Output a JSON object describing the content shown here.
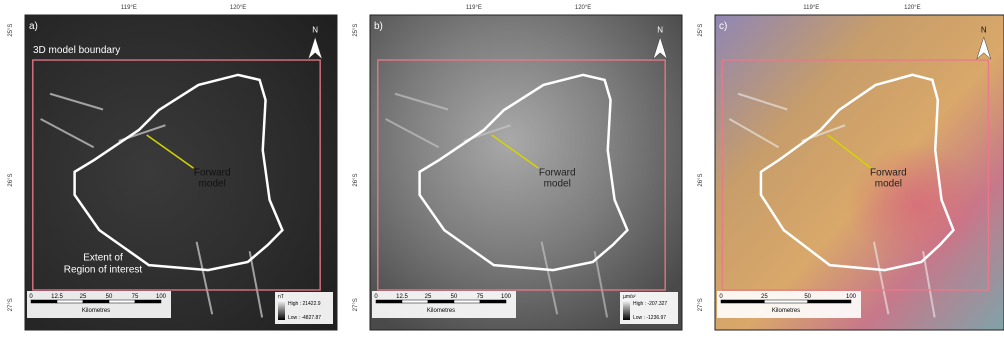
{
  "panels": [
    {
      "label": "a)",
      "lon_ticks": [
        "119°E",
        "120°E"
      ],
      "lat_ticks": [
        "25°S",
        "26°S",
        "27°S"
      ],
      "north": "N",
      "boundary_label": "3D model boundary",
      "forward_model": [
        "Forward",
        "model"
      ],
      "roi_label": [
        "Extent of",
        "Region of  interest"
      ],
      "scale": {
        "ticks": [
          "0",
          "12.5",
          "25",
          "50",
          "75",
          "100"
        ],
        "unit": "Kilometres"
      },
      "legend": {
        "unit": "nT",
        "high": "High : 21422.9",
        "low": "Low : -4827.87"
      }
    },
    {
      "label": "b)",
      "lon_ticks": [
        "119°E",
        "120°E"
      ],
      "lat_ticks": [
        "25°S",
        "26°S",
        "27°S"
      ],
      "north": "N",
      "forward_model": [
        "Forward",
        "model"
      ],
      "scale": {
        "ticks": [
          "0",
          "12.5",
          "25",
          "50",
          "75",
          "100"
        ],
        "unit": "Kilometres"
      },
      "legend": {
        "unit": "µm/s²",
        "high": "High : -207.327",
        "low": "Low : -1236.97"
      }
    },
    {
      "label": "c)",
      "lon_ticks": [
        "119°E",
        "120°E"
      ],
      "lat_ticks": [
        "25°S",
        "26°S",
        "27°S"
      ],
      "north": "N",
      "forward_model": [
        "Forward",
        "model"
      ],
      "scale": {
        "ticks": [
          "0",
          "25",
          "50",
          "100"
        ],
        "unit": "Kilometres"
      }
    }
  ]
}
